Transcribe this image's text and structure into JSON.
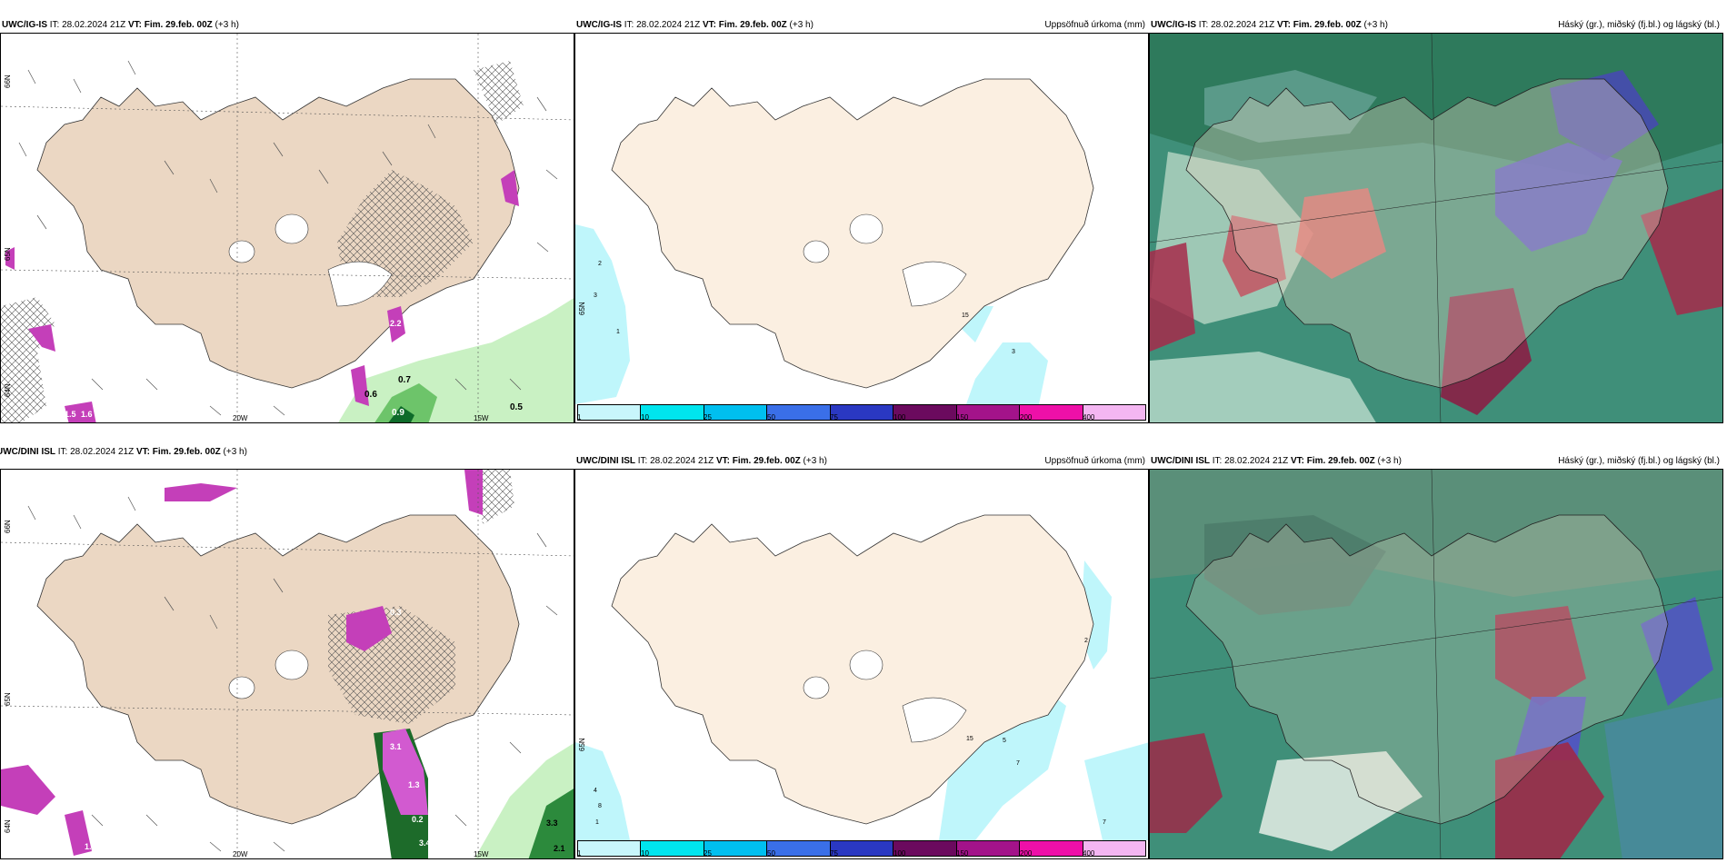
{
  "rows": [
    {
      "panels": [
        {
          "type": "wind-precip",
          "header_model": "UWC/IG-IS",
          "header_it": " IT: 28.02.2024 21Z ",
          "header_vt_label": "VT: Fim. 29.feb. 00Z",
          "header_suffix": " (+3 h)",
          "lat_labels": [
            "66N",
            "65N",
            "64N"
          ],
          "lon_labels": [
            "20W",
            "15W"
          ],
          "values": [
            "0.5",
            "0.6",
            "0.7",
            "0.9",
            "1.5",
            "1.6",
            "2.2"
          ]
        },
        {
          "type": "accum-precip",
          "header_model": "UWC/IG-IS",
          "header_it": " IT: 28.02.2024 21Z ",
          "header_vt_label": "VT: Fim. 29.feb. 00Z",
          "header_suffix": " (+3 h)",
          "header_right": "Uppsöfnuð úrkoma (mm)",
          "lat_labels": [
            "65N"
          ],
          "values": [
            "1",
            "2",
            "3",
            "15"
          ]
        },
        {
          "type": "clouds",
          "header_model": "UWC/IG-IS",
          "header_it": " IT: 28.02.2024 21Z ",
          "header_vt_label": "VT: Fim. 29.feb. 00Z",
          "header_suffix": " (+3 h)",
          "header_right": "Háský (gr.), miðský (fj.bl.) og lágský (bl.)"
        }
      ]
    },
    {
      "panels": [
        {
          "type": "wind-precip",
          "header_model": "UWC/DINI ISL",
          "header_it": " IT: 28.02.2024 21Z ",
          "header_vt_label": "VT: Fim. 29.feb. 00Z",
          "header_suffix": " (+3 h)",
          "lat_labels": [
            "66N",
            "65N",
            "64N"
          ],
          "lon_labels": [
            "20W",
            "15W"
          ],
          "values": [
            "0.3",
            "1.3",
            "3.1",
            "0.2",
            "3.4",
            "3.3",
            "2.1",
            "1.0"
          ]
        },
        {
          "type": "accum-precip",
          "header_model": "UWC/DINI ISL",
          "header_it": " IT: 28.02.2024 21Z ",
          "header_vt_label": "VT: Fim. 29.feb. 00Z",
          "header_suffix": " (+3 h)",
          "header_right": "Uppsöfnuð úrkoma (mm)",
          "lat_labels": [
            "65N"
          ],
          "values": [
            "1",
            "2",
            "3",
            "4",
            "5",
            "7",
            "8",
            "15"
          ]
        },
        {
          "type": "clouds",
          "header_model": "UWC/DINI ISL",
          "header_it": " IT: 28.02.2024 21Z ",
          "header_vt_label": "VT: Fim. 29.feb. 00Z",
          "header_suffix": " (+3 h)",
          "header_right": "Háský (gr.), miðský (fj.bl.) og lágský (bl.)"
        }
      ]
    }
  ],
  "colorbar": {
    "labels": [
      "1",
      "10",
      "25",
      "50",
      "75",
      "100",
      "150",
      "200",
      "400"
    ],
    "colors": [
      "#c8f6fb",
      "#00e5ee",
      "#00bfef",
      "#3a6fe8",
      "#2a38c2",
      "#6b0a5e",
      "#a3138a",
      "#ee10a8",
      "#f4b6f2"
    ]
  },
  "colors": {
    "land": "#ebd7c3",
    "land_light": "#fbefe1",
    "precip_cyan": "#bff6fb",
    "precip_magenta": "#c43fb9",
    "precip_green": "#7ed37d"
  }
}
